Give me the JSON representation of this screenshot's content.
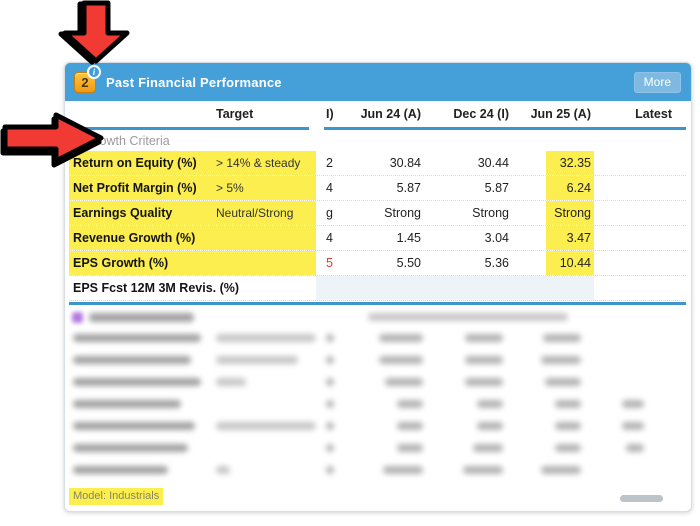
{
  "header": {
    "badge": "2",
    "info_glyph": "i",
    "title": "Past Financial Performance",
    "more_label": "More"
  },
  "columns": {
    "target": "Target",
    "truncated": "I)",
    "jun24": "Jun 24 (A)",
    "dec24": "Dec 24 (I)",
    "jun25": "Jun 25 (A)",
    "latest": "Latest"
  },
  "growth_section": {
    "star_icon": "★",
    "title": "Growth Criteria"
  },
  "rows": [
    {
      "label": "Return on Equity (%)",
      "target": "> 14% & steady",
      "trunc": "2",
      "trunc_red": false,
      "jun24": "30.84",
      "dec24": "30.44",
      "jun25": "32.35",
      "latest": "",
      "highlight": true,
      "shaded": false
    },
    {
      "label": "Net Profit Margin (%)",
      "target": "> 5%",
      "trunc": "4",
      "trunc_red": false,
      "jun24": "5.87",
      "dec24": "5.87",
      "jun25": "6.24",
      "latest": "",
      "highlight": true,
      "shaded": false
    },
    {
      "label": "Earnings Quality",
      "target": "Neutral/Strong",
      "trunc": "g",
      "trunc_red": false,
      "jun24": "Strong",
      "dec24": "Strong",
      "jun25": "Strong",
      "latest": "",
      "highlight": true,
      "shaded": false
    },
    {
      "label": "Revenue Growth (%)",
      "target": "",
      "trunc": "4",
      "trunc_red": false,
      "jun24": "1.45",
      "dec24": "3.04",
      "jun25": "3.47",
      "latest": "",
      "highlight": true,
      "shaded": false
    },
    {
      "label": "EPS Growth (%)",
      "target": "",
      "trunc": "5",
      "trunc_red": true,
      "jun24": "5.50",
      "dec24": "5.36",
      "jun25": "10.44",
      "latest": "",
      "highlight": true,
      "shaded": false
    },
    {
      "label": "EPS Fcst 12M 3M Revis. (%)",
      "target": "",
      "trunc": "",
      "trunc_red": false,
      "jun24": "",
      "dec24": "",
      "jun25": "",
      "latest": "",
      "highlight": false,
      "shaded": true
    }
  ],
  "blurred_section": {
    "star_color": "#b57be0",
    "title_bar_width": 105,
    "note_bar_width": 200,
    "rows": [
      {
        "label": 128,
        "target": 118,
        "trunc": 8,
        "v1": 44,
        "v2": 38,
        "v3": 38,
        "latest": 0
      },
      {
        "label": 118,
        "target": 82,
        "trunc": 8,
        "v1": 44,
        "v2": 38,
        "v3": 40,
        "latest": 0
      },
      {
        "label": 128,
        "target": 30,
        "trunc": 8,
        "v1": 38,
        "v2": 38,
        "v3": 36,
        "latest": 0
      },
      {
        "label": 108,
        "target": 0,
        "trunc": 8,
        "v1": 26,
        "v2": 26,
        "v3": 26,
        "latest": 22
      },
      {
        "label": 122,
        "target": 128,
        "trunc": 8,
        "v1": 26,
        "v2": 26,
        "v3": 26,
        "latest": 22
      },
      {
        "label": 115,
        "target": 0,
        "trunc": 8,
        "v1": 26,
        "v2": 30,
        "v3": 26,
        "latest": 18
      },
      {
        "label": 95,
        "target": 14,
        "trunc": 8,
        "v1": 40,
        "v2": 40,
        "v3": 40,
        "latest": 0
      }
    ]
  },
  "footer": {
    "model_label": "Model: Industrials"
  },
  "colors": {
    "header_bg": "#459fd9",
    "accent_line": "#3b96cf",
    "highlight_yellow": "#fcee4f",
    "negative_red": "#e03c31",
    "badge_orange": "#f6a623",
    "arrow_red": "#f23a34"
  }
}
